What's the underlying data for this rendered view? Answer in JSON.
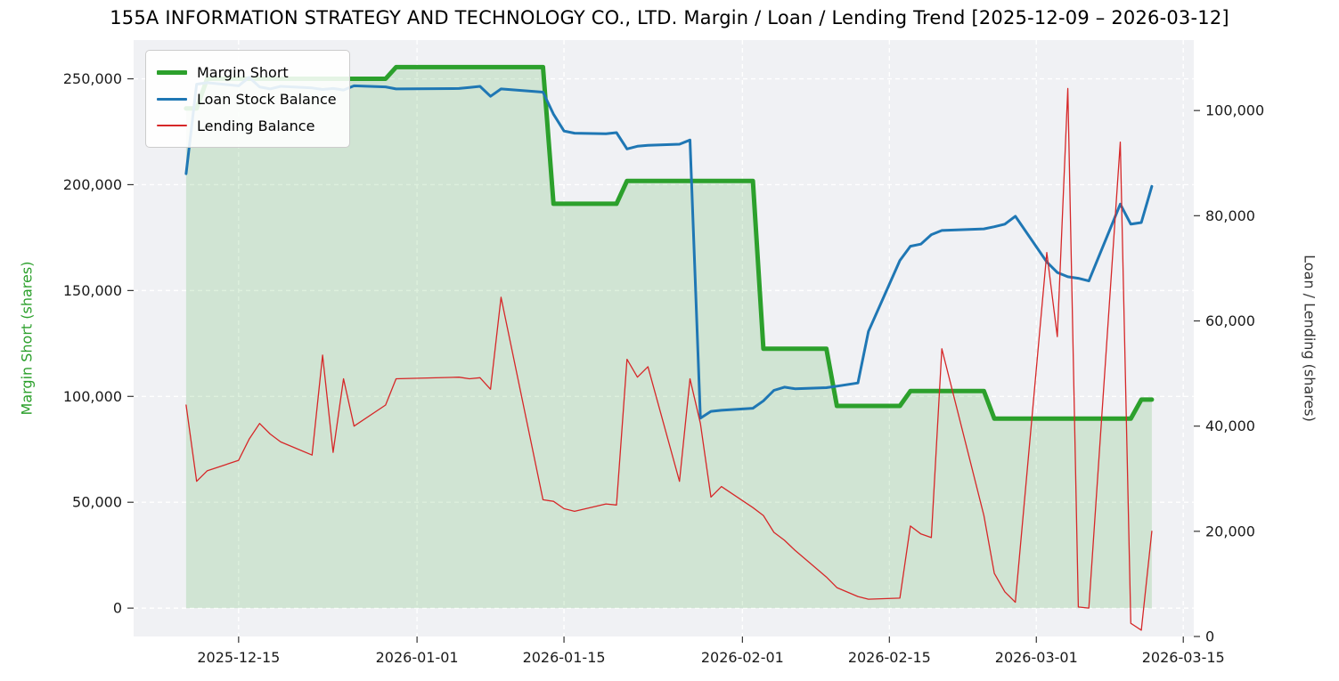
{
  "title": "155A INFORMATION STRATEGY AND TECHNOLOGY CO., LTD. Margin / Loan / Lending Trend [2025-12-09 – 2026-03-12]",
  "axes": {
    "left_label": "Margin Short (shares)",
    "right_label": "Loan / Lending (shares)",
    "x_ticks": [
      {
        "date": "2025-12-15",
        "label": "2025-12-15"
      },
      {
        "date": "2026-01-01",
        "label": "2026-01-01"
      },
      {
        "date": "2026-01-15",
        "label": "2026-01-15"
      },
      {
        "date": "2026-02-01",
        "label": "2026-02-01"
      },
      {
        "date": "2026-02-15",
        "label": "2026-02-15"
      },
      {
        "date": "2026-03-01",
        "label": "2026-03-01"
      },
      {
        "date": "2026-03-15",
        "label": "2026-03-15"
      }
    ],
    "left_ticks": [
      {
        "value": 0,
        "label": "0"
      },
      {
        "value": 50000,
        "label": "50,000"
      },
      {
        "value": 100000,
        "label": "100,000"
      },
      {
        "value": 150000,
        "label": "150,000"
      },
      {
        "value": 200000,
        "label": "200,000"
      },
      {
        "value": 250000,
        "label": "250,000"
      }
    ],
    "right_ticks": [
      {
        "value": 0,
        "label": "0"
      },
      {
        "value": 20000,
        "label": "20,000"
      },
      {
        "value": 40000,
        "label": "40,000"
      },
      {
        "value": 60000,
        "label": "60,000"
      },
      {
        "value": 80000,
        "label": "80,000"
      },
      {
        "value": 100000,
        "label": "100,000"
      }
    ]
  },
  "legend": [
    {
      "name": "Margin Short",
      "color": "#2ca02c",
      "sample_height": 5
    },
    {
      "name": "Loan Stock Balance",
      "color": "#1f77b4",
      "sample_height": 3
    },
    {
      "name": "Lending Balance",
      "color": "#d62728",
      "sample_height": 2
    }
  ],
  "colors": {
    "plot_bg": "#f0f1f4",
    "grid": "#ffffff",
    "tick_text": "#1a1a1a",
    "title_text": "#000000",
    "margin_short": "#2ca02c",
    "loan_stock": "#1f77b4",
    "lending": "#d62728",
    "left_label_color": "#2ca02c",
    "right_label_color": "#333333"
  },
  "chart_data": {
    "type": "line",
    "title": "155A INFORMATION STRATEGY AND TECHNOLOGY CO., LTD. Margin / Loan / Lending Trend [2025-12-09 – 2026-03-12]",
    "xlabel": "",
    "ylabel_left": "Margin Short (shares)",
    "ylabel_right": "Loan / Lending (shares)",
    "grid": true,
    "legend_position": "upper left",
    "x_domain": [
      "2025-12-05",
      "2026-03-16"
    ],
    "left_ylim": [
      -13400,
      268300
    ],
    "right_ylim": [
      0,
      113400
    ],
    "x": [
      "2025-12-10",
      "2025-12-11",
      "2025-12-12",
      "2025-12-15",
      "2025-12-16",
      "2025-12-17",
      "2025-12-18",
      "2025-12-19",
      "2025-12-22",
      "2025-12-23",
      "2025-12-24",
      "2025-12-25",
      "2025-12-26",
      "2025-12-29",
      "2025-12-30",
      "2026-01-05",
      "2026-01-06",
      "2026-01-07",
      "2026-01-08",
      "2026-01-09",
      "2026-01-13",
      "2026-01-14",
      "2026-01-15",
      "2026-01-16",
      "2026-01-19",
      "2026-01-20",
      "2026-01-21",
      "2026-01-22",
      "2026-01-23",
      "2026-01-26",
      "2026-01-27",
      "2026-01-28",
      "2026-01-29",
      "2026-01-30",
      "2026-02-02",
      "2026-02-03",
      "2026-02-04",
      "2026-02-05",
      "2026-02-06",
      "2026-02-09",
      "2026-02-10",
      "2026-02-12",
      "2026-02-13",
      "2026-02-16",
      "2026-02-17",
      "2026-02-18",
      "2026-02-19",
      "2026-02-20",
      "2026-02-24",
      "2026-02-25",
      "2026-02-26",
      "2026-02-27",
      "2026-03-02",
      "2026-03-03",
      "2026-03-04",
      "2026-03-05",
      "2026-03-06",
      "2026-03-09",
      "2026-03-10",
      "2026-03-11",
      "2026-03-12"
    ],
    "series": [
      {
        "name": "Margin Short",
        "axis": "left",
        "color": "#2ca02c",
        "line_width": 5,
        "fill": true,
        "fill_opacity": 0.16,
        "values": [
          236000,
          236000,
          250000,
          250000,
          250000,
          250000,
          250000,
          250000,
          250000,
          250000,
          250000,
          250000,
          250000,
          250000,
          255500,
          255500,
          255500,
          255500,
          255500,
          255500,
          255500,
          191000,
          191000,
          191000,
          191000,
          191000,
          201800,
          201800,
          201800,
          201800,
          201800,
          201800,
          201800,
          201800,
          201800,
          122500,
          122500,
          122500,
          122500,
          122500,
          95500,
          95500,
          95500,
          95500,
          102500,
          102500,
          102500,
          102500,
          102500,
          89500,
          89500,
          89500,
          89500,
          89500,
          89500,
          89500,
          89500,
          89500,
          89500,
          98500,
          98500
        ]
      },
      {
        "name": "Loan Stock Balance",
        "axis": "right",
        "color": "#1f77b4",
        "line_width": 3,
        "fill": false,
        "values": [
          88000,
          105000,
          105300,
          104700,
          106300,
          104500,
          104100,
          104600,
          104300,
          104000,
          104200,
          103900,
          104700,
          104500,
          104100,
          104200,
          104400,
          104600,
          102700,
          104100,
          103500,
          99300,
          96100,
          95700,
          95600,
          95800,
          92700,
          93200,
          93400,
          93600,
          94400,
          41500,
          42800,
          43000,
          43400,
          44800,
          46800,
          47400,
          47100,
          47300,
          47600,
          48200,
          58000,
          71500,
          74200,
          74600,
          76400,
          77200,
          77500,
          77900,
          78400,
          79900,
          71200,
          69200,
          68400,
          68100,
          67600,
          82200,
          78400,
          78700,
          85600
        ]
      },
      {
        "name": "Lending Balance",
        "axis": "right",
        "color": "#d62728",
        "line_width": 1.3,
        "fill": false,
        "values": [
          44000,
          29500,
          31500,
          33500,
          37500,
          40500,
          38500,
          37000,
          34500,
          53500,
          35000,
          49000,
          40000,
          44000,
          49000,
          49300,
          49000,
          49200,
          47000,
          64500,
          26000,
          25700,
          24300,
          23800,
          25200,
          25000,
          52700,
          49300,
          51300,
          29500,
          49000,
          40500,
          26500,
          28500,
          24500,
          23000,
          19800,
          18300,
          16400,
          11300,
          9300,
          7600,
          7100,
          7300,
          21000,
          19500,
          18800,
          54700,
          23000,
          12000,
          8500,
          6500,
          73000,
          57000,
          104200,
          5600,
          5400,
          94000,
          2500,
          1200,
          20000
        ]
      }
    ]
  }
}
